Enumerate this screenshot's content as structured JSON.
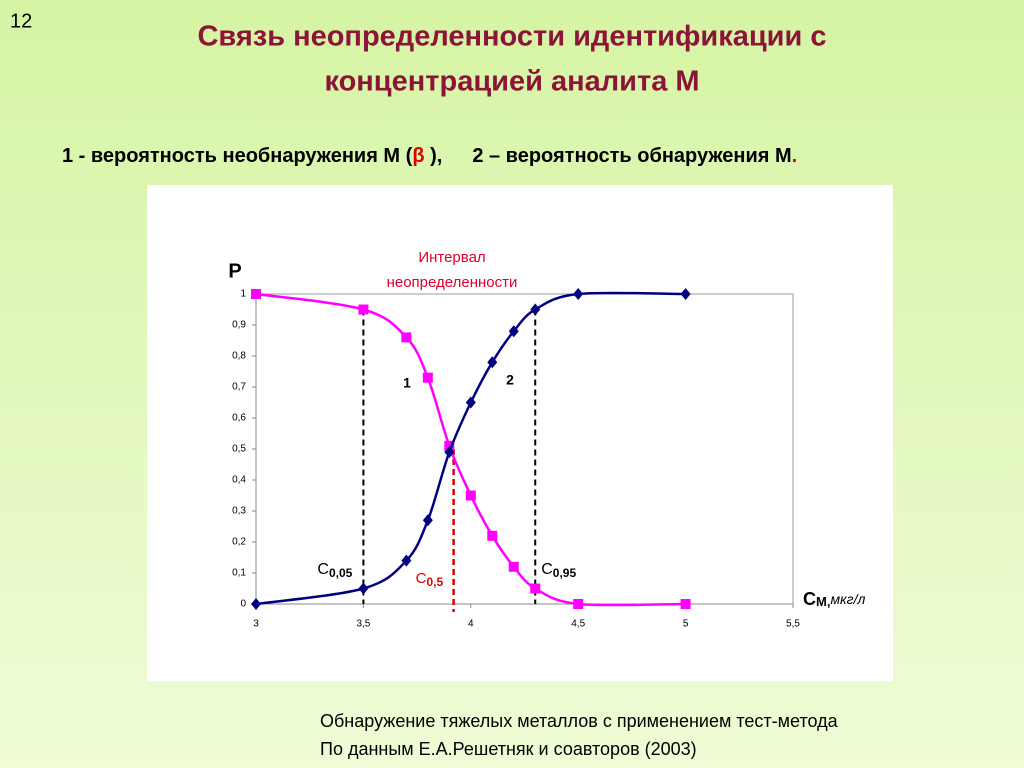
{
  "slide_number": "12",
  "title": [
    "Связь неопределенности идентификации с",
    "концентрацией аналита  М"
  ],
  "subtitle": [
    "1 - вероятность необнаружения М (",
    "β",
    " ),",
    "2 – вероятность обнаружения  М",
    "."
  ],
  "footnote": [
    "Обнаружение  тяжелых металлов с применением  тест-метода",
    "По данным Е.А.Решетняк и соавторов (2003)"
  ],
  "chart_data": {
    "type": "line",
    "y_label": "P",
    "x_label": {
      "text": "С",
      "sub": "М,",
      "unit": "мкг/л"
    },
    "annotation": [
      "Интервал",
      "неопределенности"
    ],
    "x": [
      3,
      3.5,
      3.7,
      3.8,
      3.9,
      4,
      4.1,
      4.2,
      4.3,
      4.5,
      5
    ],
    "series": [
      {
        "name": "1",
        "color": "#ff00ff",
        "marker": "square",
        "values": [
          1,
          0.95,
          0.86,
          0.73,
          0.51,
          0.35,
          0.22,
          0.12,
          0.05,
          0,
          0
        ]
      },
      {
        "name": "2",
        "color": "#000080",
        "marker": "diamond",
        "values": [
          0,
          0.05,
          0.14,
          0.27,
          0.49,
          0.65,
          0.78,
          0.88,
          0.95,
          1,
          1
        ]
      }
    ],
    "reference_lines": [
      {
        "label": "C",
        "sub": "0,05",
        "x": 3.5,
        "y": 0.95,
        "color": "#000000"
      },
      {
        "label": "C",
        "sub": "0,5",
        "x": 3.92,
        "y": 0.5,
        "color": "#e00000"
      },
      {
        "label": "C",
        "sub": "0,95",
        "x": 4.3,
        "y": 0.95,
        "color": "#000000"
      }
    ],
    "xlim": [
      3,
      5.5
    ],
    "ylim": [
      0,
      1
    ],
    "xticks": [
      3,
      {
        "value": 3.5,
        "label": "3,5"
      },
      4,
      {
        "value": 4.5,
        "label": "4,5"
      },
      5,
      {
        "value": 5.5,
        "label": "5,5"
      }
    ],
    "yticks": [
      0,
      {
        "value": 0.1,
        "label": "0,1"
      },
      {
        "value": 0.2,
        "label": "0,2"
      },
      {
        "value": 0.3,
        "label": "0,3"
      },
      {
        "value": 0.4,
        "label": "0,4"
      },
      {
        "value": 0.5,
        "label": "0,5"
      },
      {
        "value": 0.6,
        "label": "0,6"
      },
      {
        "value": 0.7,
        "label": "0,7"
      },
      {
        "value": 0.8,
        "label": "0,8"
      },
      {
        "value": 0.9,
        "label": "0,9"
      },
      1
    ]
  }
}
